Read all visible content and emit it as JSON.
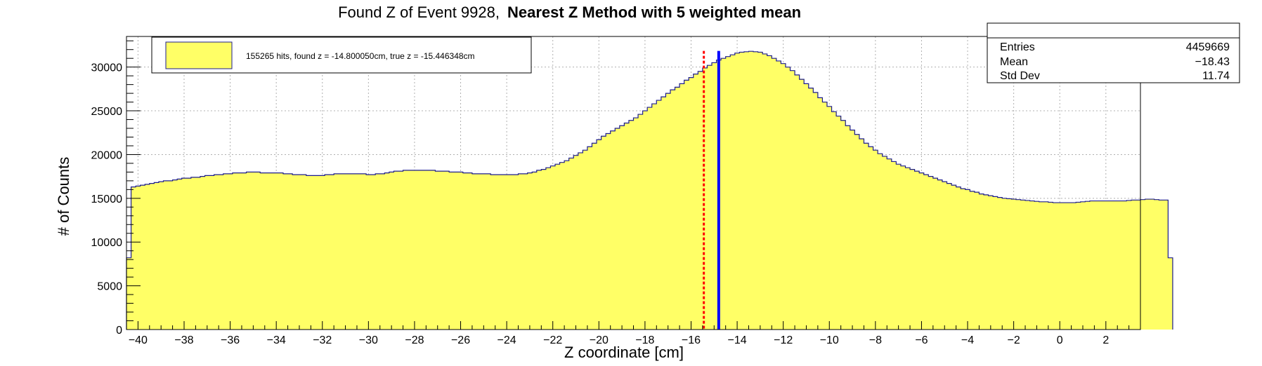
{
  "chart_data": {
    "type": "histogram",
    "title": "Found Z of Event 9928,",
    "title_bold": "Nearest Z Method with 5 weighted mean",
    "xlabel": "Z coordinate [cm]",
    "ylabel": "# of Counts",
    "xlim": [
      -40.5,
      3.5
    ],
    "ylim": [
      0,
      33500
    ],
    "x_ticks": [
      -40,
      -38,
      -36,
      -34,
      -32,
      -30,
      -28,
      -26,
      -24,
      -22,
      -20,
      -18,
      -16,
      -14,
      -12,
      -10,
      -8,
      -6,
      -4,
      -2,
      0,
      2
    ],
    "x_tick_labels": [
      "−40",
      "−38",
      "−36",
      "−34",
      "−32",
      "−30",
      "−28",
      "−26",
      "−24",
      "−22",
      "−20",
      "−18",
      "−16",
      "−14",
      "−12",
      "−10",
      "−8",
      "−6",
      "−4",
      "−2",
      "0",
      "2"
    ],
    "y_ticks": [
      0,
      5000,
      10000,
      15000,
      20000,
      25000,
      30000
    ],
    "y_tick_labels": [
      "0",
      "5000",
      "10000",
      "15000",
      "20000",
      "25000",
      "30000"
    ],
    "grid": true,
    "fill_color": "#ffff66",
    "line_color": "#1c1c8c",
    "x_edges_start": -40.5,
    "bin_width": 0.2,
    "values": [
      8200,
      16300,
      16400,
      16500,
      16600,
      16700,
      16800,
      16900,
      17000,
      17000,
      17100,
      17200,
      17300,
      17300,
      17400,
      17400,
      17500,
      17600,
      17600,
      17700,
      17700,
      17800,
      17800,
      17900,
      17900,
      17900,
      18000,
      18000,
      18000,
      17900,
      17900,
      17900,
      17900,
      17900,
      17800,
      17800,
      17700,
      17700,
      17700,
      17600,
      17600,
      17600,
      17600,
      17700,
      17700,
      17800,
      17800,
      17800,
      17800,
      17800,
      17800,
      17800,
      17700,
      17700,
      17800,
      17800,
      17900,
      18000,
      18100,
      18100,
      18200,
      18200,
      18200,
      18200,
      18200,
      18200,
      18200,
      18100,
      18100,
      18100,
      18000,
      18000,
      18000,
      17900,
      17900,
      17800,
      17800,
      17800,
      17800,
      17700,
      17700,
      17700,
      17700,
      17700,
      17700,
      17800,
      17800,
      17900,
      18000,
      18200,
      18300,
      18500,
      18700,
      18900,
      19100,
      19300,
      19600,
      19900,
      20200,
      20500,
      20900,
      21300,
      21700,
      22100,
      22400,
      22700,
      23000,
      23300,
      23600,
      23900,
      24200,
      24600,
      25000,
      25400,
      25800,
      26200,
      26600,
      27000,
      27400,
      27700,
      28100,
      28500,
      28800,
      29200,
      29500,
      29900,
      30200,
      30500,
      30800,
      31000,
      31200,
      31400,
      31600,
      31700,
      31750,
      31800,
      31750,
      31700,
      31500,
      31300,
      31000,
      30700,
      30400,
      30000,
      29600,
      29100,
      28600,
      28100,
      27600,
      27100,
      26500,
      26000,
      25500,
      24900,
      24400,
      23900,
      23300,
      22800,
      22300,
      21800,
      21300,
      20900,
      20500,
      20100,
      19800,
      19500,
      19200,
      18900,
      18700,
      18500,
      18300,
      18100,
      17900,
      17700,
      17500,
      17300,
      17100,
      16900,
      16700,
      16500,
      16300,
      16100,
      16000,
      15800,
      15700,
      15500,
      15400,
      15300,
      15200,
      15100,
      15000,
      14950,
      14900,
      14850,
      14800,
      14750,
      14700,
      14650,
      14600,
      14600,
      14550,
      14500,
      14500,
      14500,
      14500,
      14500,
      14550,
      14600,
      14650,
      14700,
      14700,
      14700,
      14700,
      14700,
      14700,
      14700,
      14700,
      14750,
      14800,
      14800,
      14850,
      14900,
      14900,
      14850,
      14800,
      14800,
      8200
    ],
    "markers": [
      {
        "name": "found z",
        "x": -14.80005,
        "color": "#0000ff",
        "style": "solid"
      },
      {
        "name": "true z",
        "x": -15.446348,
        "color": "#ff0000",
        "style": "dashed"
      }
    ],
    "legend": {
      "position": "top-left",
      "label": "155265 hits, found z = -14.800050cm, true z = -15.446348cm"
    },
    "stats": {
      "position": "top-right",
      "rows": [
        {
          "label": "Entries",
          "value": "4459669"
        },
        {
          "label": "Mean",
          "value": "−18.43"
        },
        {
          "label": "Std Dev",
          "value": "11.74"
        }
      ]
    }
  }
}
